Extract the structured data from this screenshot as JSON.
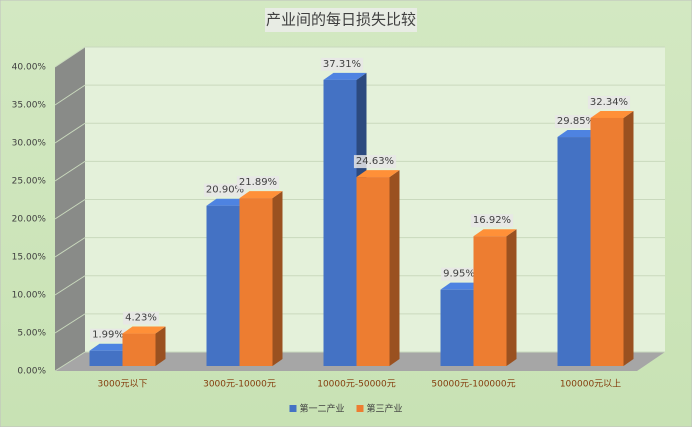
{
  "chart_data": {
    "type": "bar3d",
    "title": "产业间的每日损失比较",
    "categories": [
      "3000元以下",
      "3000元-10000元",
      "10000元-50000元",
      "50000元-100000元",
      "100000元以上"
    ],
    "series": [
      {
        "name": "第一二产业",
        "color": "#4472c4",
        "values": [
          1.99,
          20.9,
          37.31,
          9.95,
          29.85
        ],
        "value_labels": [
          "1.99%",
          "20.90%",
          "37.31%",
          "9.95%",
          "29.85%"
        ]
      },
      {
        "name": "第三产业",
        "color": "#ed7d31",
        "values": [
          4.23,
          21.89,
          24.63,
          16.92,
          32.34
        ],
        "value_labels": [
          "4.23%",
          "21.89%",
          "24.63%",
          "16.92%",
          "32.34%"
        ]
      }
    ],
    "ylim": [
      0,
      40
    ],
    "yticks": [
      {
        "value": 0,
        "label": "0.00%"
      },
      {
        "value": 5,
        "label": "5.00%"
      },
      {
        "value": 10,
        "label": "10.00%"
      },
      {
        "value": 15,
        "label": "15.00%"
      },
      {
        "value": 20,
        "label": "20.00%"
      },
      {
        "value": 25,
        "label": "25.00%"
      },
      {
        "value": 30,
        "label": "30.00%"
      },
      {
        "value": 35,
        "label": "35.00%"
      },
      {
        "value": 40,
        "label": "40.00%"
      }
    ],
    "grid": true,
    "legend": "bottom"
  }
}
